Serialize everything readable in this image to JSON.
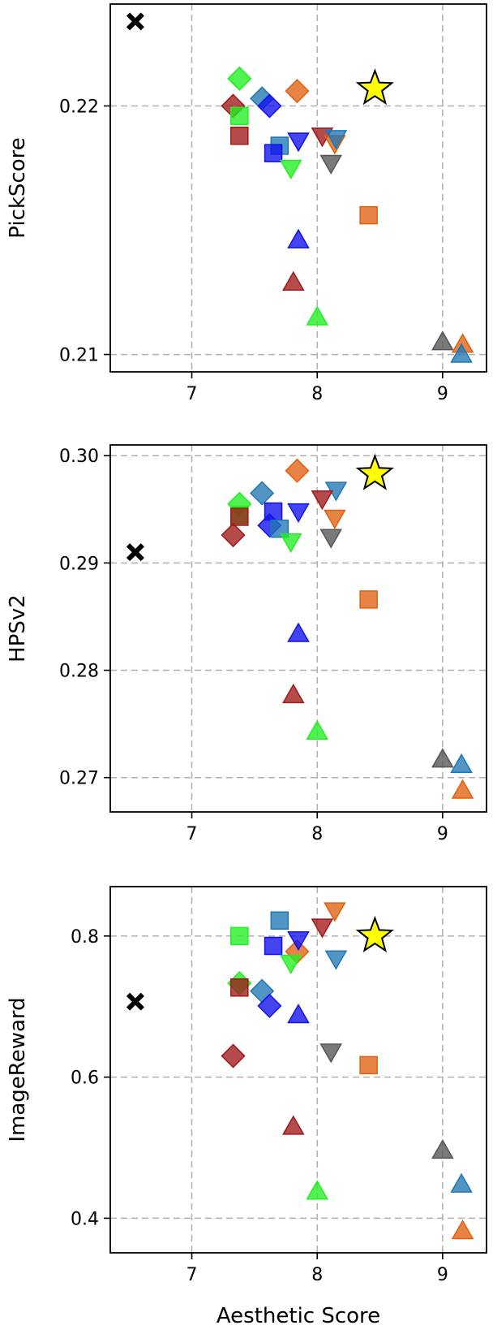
{
  "colors": {
    "red": "#a01818",
    "green": "#22ee22",
    "blue": "#1010ee",
    "steelblue": "#1f77b4",
    "orange": "#e06010",
    "gray": "#555555",
    "black": "#000000",
    "yellow": "#ffff00"
  },
  "chart_data": [
    {
      "type": "scatter",
      "xlabel": "",
      "ylabel": "PickScore",
      "xlim": [
        6.35,
        9.35
      ],
      "ylim": [
        0.2093,
        0.2241
      ],
      "xticks": [
        7,
        8,
        9
      ],
      "xtick_labels": [
        "7",
        "8",
        "9"
      ],
      "yticks": [
        0.21,
        0.22
      ],
      "ytick_labels": [
        "0.21",
        "0.22"
      ],
      "grid": true,
      "points": [
        {
          "x": 6.55,
          "y": 0.2234,
          "marker": "x",
          "color": "black"
        },
        {
          "x": 8.46,
          "y": 0.2207,
          "marker": "star",
          "color": "yellow"
        },
        {
          "x": 7.38,
          "y": 0.2211,
          "marker": "diamond",
          "color": "green"
        },
        {
          "x": 7.84,
          "y": 0.2206,
          "marker": "diamond",
          "color": "orange"
        },
        {
          "x": 7.56,
          "y": 0.2203,
          "marker": "diamond",
          "color": "steelblue"
        },
        {
          "x": 7.62,
          "y": 0.22,
          "marker": "diamond",
          "color": "blue"
        },
        {
          "x": 7.33,
          "y": 0.22,
          "marker": "diamond",
          "color": "red"
        },
        {
          "x": 7.38,
          "y": 0.2196,
          "marker": "square",
          "color": "green"
        },
        {
          "x": 7.38,
          "y": 0.2188,
          "marker": "square",
          "color": "red"
        },
        {
          "x": 7.7,
          "y": 0.2184,
          "marker": "square",
          "color": "steelblue"
        },
        {
          "x": 7.65,
          "y": 0.2181,
          "marker": "square",
          "color": "blue"
        },
        {
          "x": 8.41,
          "y": 0.2156,
          "marker": "square",
          "color": "orange"
        },
        {
          "x": 7.85,
          "y": 0.2186,
          "marker": "triangle-down",
          "color": "blue"
        },
        {
          "x": 8.04,
          "y": 0.2188,
          "marker": "triangle-down",
          "color": "red"
        },
        {
          "x": 8.14,
          "y": 0.2185,
          "marker": "triangle-down",
          "color": "orange"
        },
        {
          "x": 8.15,
          "y": 0.2187,
          "marker": "triangle-down",
          "color": "steelblue"
        },
        {
          "x": 8.11,
          "y": 0.2177,
          "marker": "triangle-down",
          "color": "gray"
        },
        {
          "x": 7.79,
          "y": 0.2175,
          "marker": "triangle-down",
          "color": "green"
        },
        {
          "x": 7.85,
          "y": 0.2146,
          "marker": "triangle-up",
          "color": "blue"
        },
        {
          "x": 7.81,
          "y": 0.2129,
          "marker": "triangle-up",
          "color": "red"
        },
        {
          "x": 8.0,
          "y": 0.2115,
          "marker": "triangle-up",
          "color": "green"
        },
        {
          "x": 9.0,
          "y": 0.2105,
          "marker": "triangle-up",
          "color": "gray"
        },
        {
          "x": 9.16,
          "y": 0.2104,
          "marker": "triangle-up",
          "color": "orange"
        },
        {
          "x": 9.15,
          "y": 0.21,
          "marker": "triangle-up",
          "color": "steelblue"
        }
      ]
    },
    {
      "type": "scatter",
      "xlabel": "",
      "ylabel": "HPSv2",
      "xlim": [
        6.35,
        9.35
      ],
      "ylim": [
        0.2668,
        0.301
      ],
      "xticks": [
        7,
        8,
        9
      ],
      "xtick_labels": [
        "7",
        "8",
        "9"
      ],
      "yticks": [
        0.27,
        0.28,
        0.29,
        0.3
      ],
      "ytick_labels": [
        "0.27",
        "0.28",
        "0.29",
        "0.30"
      ],
      "grid": true,
      "points": [
        {
          "x": 6.55,
          "y": 0.291,
          "marker": "x",
          "color": "black"
        },
        {
          "x": 8.46,
          "y": 0.2983,
          "marker": "star",
          "color": "yellow"
        },
        {
          "x": 7.84,
          "y": 0.2986,
          "marker": "diamond",
          "color": "orange"
        },
        {
          "x": 7.56,
          "y": 0.2965,
          "marker": "diamond",
          "color": "steelblue"
        },
        {
          "x": 7.38,
          "y": 0.2955,
          "marker": "diamond",
          "color": "green"
        },
        {
          "x": 7.62,
          "y": 0.2935,
          "marker": "diamond",
          "color": "blue"
        },
        {
          "x": 7.33,
          "y": 0.2926,
          "marker": "diamond",
          "color": "red"
        },
        {
          "x": 7.38,
          "y": 0.2945,
          "marker": "square",
          "color": "green"
        },
        {
          "x": 7.38,
          "y": 0.2943,
          "marker": "square",
          "color": "red"
        },
        {
          "x": 7.65,
          "y": 0.2948,
          "marker": "square",
          "color": "blue"
        },
        {
          "x": 7.7,
          "y": 0.2932,
          "marker": "square",
          "color": "steelblue"
        },
        {
          "x": 8.41,
          "y": 0.2866,
          "marker": "square",
          "color": "orange"
        },
        {
          "x": 8.15,
          "y": 0.2968,
          "marker": "triangle-down",
          "color": "steelblue"
        },
        {
          "x": 8.04,
          "y": 0.296,
          "marker": "triangle-down",
          "color": "red"
        },
        {
          "x": 7.85,
          "y": 0.2948,
          "marker": "triangle-down",
          "color": "blue"
        },
        {
          "x": 8.14,
          "y": 0.2942,
          "marker": "triangle-down",
          "color": "orange"
        },
        {
          "x": 8.11,
          "y": 0.2924,
          "marker": "triangle-down",
          "color": "gray"
        },
        {
          "x": 7.79,
          "y": 0.292,
          "marker": "triangle-down",
          "color": "green"
        },
        {
          "x": 7.85,
          "y": 0.2834,
          "marker": "triangle-up",
          "color": "blue"
        },
        {
          "x": 7.81,
          "y": 0.2777,
          "marker": "triangle-up",
          "color": "red"
        },
        {
          "x": 8.0,
          "y": 0.2743,
          "marker": "triangle-up",
          "color": "green"
        },
        {
          "x": 9.0,
          "y": 0.2717,
          "marker": "triangle-up",
          "color": "gray"
        },
        {
          "x": 9.15,
          "y": 0.2712,
          "marker": "triangle-up",
          "color": "steelblue"
        },
        {
          "x": 9.16,
          "y": 0.2688,
          "marker": "triangle-up",
          "color": "orange"
        }
      ]
    },
    {
      "type": "scatter",
      "xlabel": "Aesthetic Score",
      "ylabel": "ImageReward",
      "xlim": [
        6.35,
        9.35
      ],
      "ylim": [
        0.351,
        0.87
      ],
      "xticks": [
        7,
        8,
        9
      ],
      "xtick_labels": [
        "7",
        "8",
        "9"
      ],
      "yticks": [
        0.4,
        0.6,
        0.8
      ],
      "ytick_labels": [
        "0.4",
        "0.6",
        "0.8"
      ],
      "grid": true,
      "points": [
        {
          "x": 6.55,
          "y": 0.707,
          "marker": "x",
          "color": "black"
        },
        {
          "x": 8.46,
          "y": 0.8,
          "marker": "star",
          "color": "yellow"
        },
        {
          "x": 7.84,
          "y": 0.778,
          "marker": "diamond",
          "color": "orange"
        },
        {
          "x": 7.38,
          "y": 0.733,
          "marker": "diamond",
          "color": "green"
        },
        {
          "x": 7.56,
          "y": 0.722,
          "marker": "diamond",
          "color": "steelblue"
        },
        {
          "x": 7.62,
          "y": 0.701,
          "marker": "diamond",
          "color": "blue"
        },
        {
          "x": 7.33,
          "y": 0.63,
          "marker": "diamond",
          "color": "red"
        },
        {
          "x": 7.7,
          "y": 0.822,
          "marker": "square",
          "color": "steelblue"
        },
        {
          "x": 7.38,
          "y": 0.8,
          "marker": "square",
          "color": "green"
        },
        {
          "x": 7.65,
          "y": 0.786,
          "marker": "square",
          "color": "blue"
        },
        {
          "x": 7.38,
          "y": 0.727,
          "marker": "square",
          "color": "red"
        },
        {
          "x": 8.41,
          "y": 0.617,
          "marker": "square",
          "color": "orange"
        },
        {
          "x": 8.14,
          "y": 0.836,
          "marker": "triangle-down",
          "color": "orange"
        },
        {
          "x": 8.04,
          "y": 0.813,
          "marker": "triangle-down",
          "color": "red"
        },
        {
          "x": 7.85,
          "y": 0.795,
          "marker": "triangle-down",
          "color": "blue"
        },
        {
          "x": 8.15,
          "y": 0.768,
          "marker": "triangle-down",
          "color": "steelblue"
        },
        {
          "x": 7.79,
          "y": 0.762,
          "marker": "triangle-down",
          "color": "green"
        },
        {
          "x": 8.11,
          "y": 0.636,
          "marker": "triangle-down",
          "color": "gray"
        },
        {
          "x": 7.85,
          "y": 0.688,
          "marker": "triangle-up",
          "color": "blue"
        },
        {
          "x": 7.81,
          "y": 0.53,
          "marker": "triangle-up",
          "color": "red"
        },
        {
          "x": 9.0,
          "y": 0.496,
          "marker": "triangle-up",
          "color": "gray"
        },
        {
          "x": 9.15,
          "y": 0.448,
          "marker": "triangle-up",
          "color": "steelblue"
        },
        {
          "x": 8.0,
          "y": 0.438,
          "marker": "triangle-up",
          "color": "green"
        },
        {
          "x": 9.16,
          "y": 0.382,
          "marker": "triangle-up",
          "color": "orange"
        }
      ]
    }
  ]
}
